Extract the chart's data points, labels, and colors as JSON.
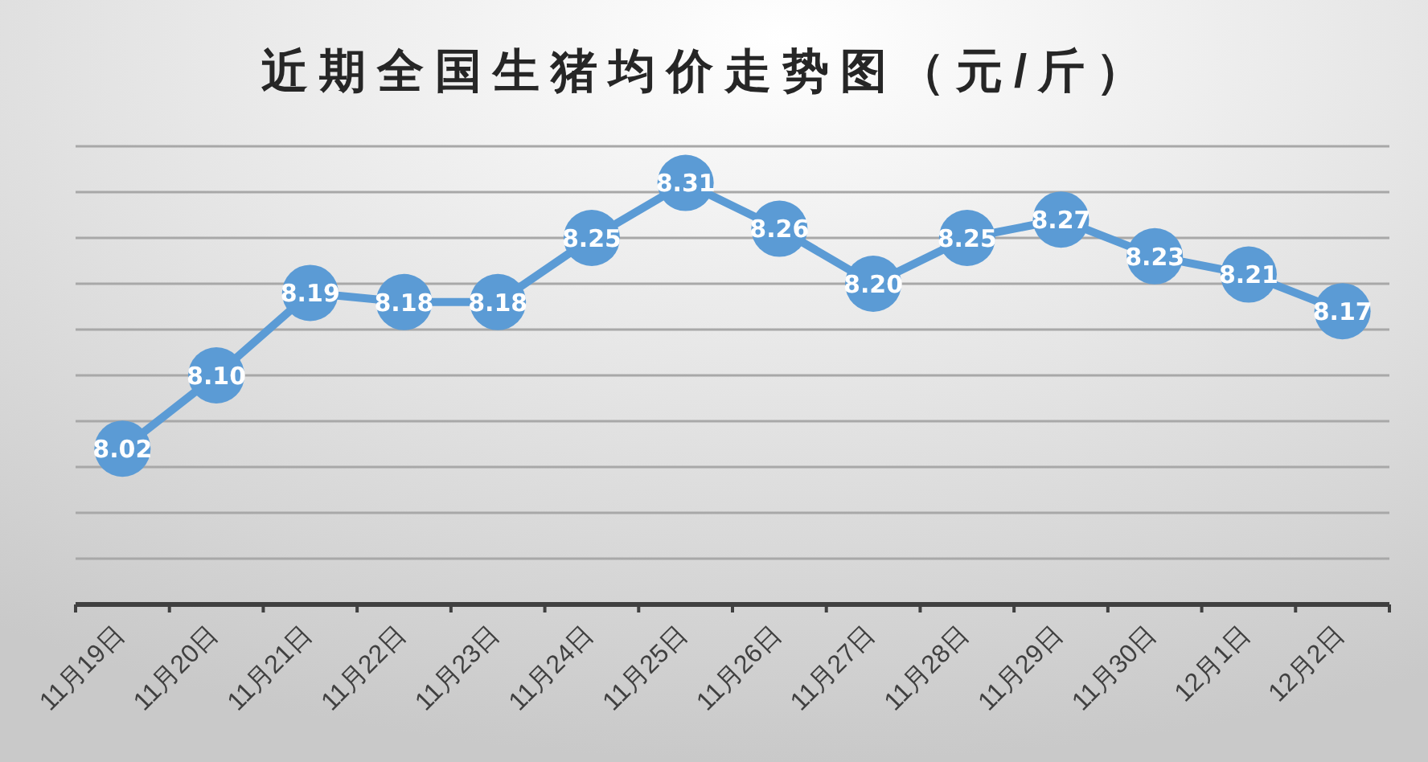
{
  "chart_data": {
    "type": "line",
    "title": "近期全国生猪均价走势图（元/斤）",
    "categories": [
      "11月19日",
      "11月20日",
      "11月21日",
      "11月22日",
      "11月23日",
      "11月24日",
      "11月25日",
      "11月26日",
      "11月27日",
      "11月28日",
      "11月29日",
      "11月30日",
      "12月1日",
      "12月2日"
    ],
    "series": [
      {
        "color": "#5b9bd5",
        "values": [
          8.02,
          8.1,
          8.19,
          8.18,
          8.18,
          8.25,
          8.31,
          8.26,
          8.2,
          8.25,
          8.27,
          8.23,
          8.21,
          8.17
        ],
        "value_labels": [
          "8.02",
          "8.10",
          "8.19",
          "8.18",
          "8.18",
          "8.25",
          "8.31",
          "8.26",
          "8.20",
          "8.25",
          "8.27",
          "8.23",
          "8.21",
          "8.17"
        ]
      }
    ],
    "ylim": [
      7.85,
      8.35
    ],
    "yticks": [
      {
        "value": 7.85,
        "label": null
      },
      {
        "value": 7.9,
        "label": null
      },
      {
        "value": 7.95,
        "label": null
      },
      {
        "value": 8.0,
        "label": null
      },
      {
        "value": 8.05,
        "label": null
      },
      {
        "value": 8.1,
        "label": null
      },
      {
        "value": 8.15,
        "label": null
      },
      {
        "value": 8.2,
        "label": null
      },
      {
        "value": 8.25,
        "label": null
      },
      {
        "value": 8.3,
        "label": null
      },
      {
        "value": 8.35,
        "label": null
      }
    ],
    "tick_labels": "x",
    "grid": "y",
    "marker": "circle",
    "line_style": "solid"
  }
}
